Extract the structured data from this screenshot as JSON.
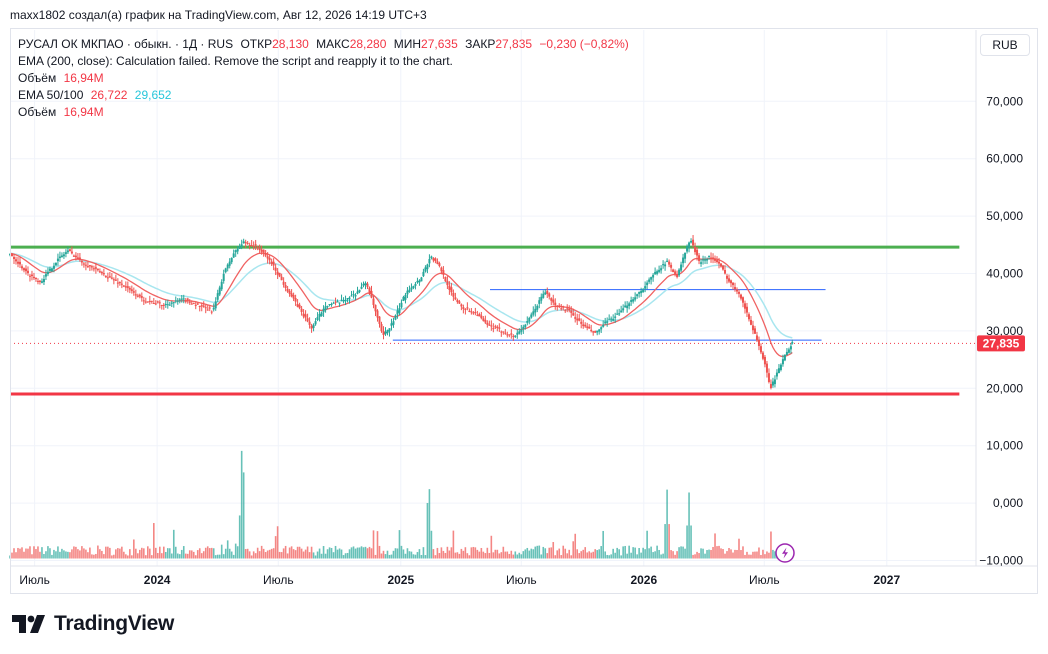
{
  "header": {
    "credit": "maxx1802 создал(а) график на TradingView.com, Авг 12, 2026 14:19 UTC+3"
  },
  "legend": {
    "symbol": "РУСАЛ ОК МКПАО · обыкн. · 1Д · RUS",
    "open_label": "ОТКР",
    "open": "28,130",
    "high_label": "МАКС",
    "high": "28,280",
    "low_label": "МИН",
    "low": "27,635",
    "close_label": "ЗАКР",
    "close": "27,835",
    "change": "−0,230 (−0,82%)",
    "ema200": "EMA (200, close): Calculation failed. Remove the script and reapply it to the chart.",
    "volume_label": "Объём",
    "volume_value": "16,94M",
    "ema50_100_label": "EMA 50/100",
    "ema50_value": "26,722",
    "ema100_value": "29,652"
  },
  "currency_button": "RUB",
  "brand": "TradingView",
  "colors": {
    "up": "#26a69a",
    "down": "#ef5350",
    "ema50": "#f06262",
    "ema100": "#a8e6ef",
    "resistance": "#4caf50",
    "support": "#f23645",
    "hline": "#2962ff",
    "price_tag": "#f23645"
  },
  "chart_data": {
    "type": "candlestick",
    "y_axis": {
      "ticks": [
        "70,000",
        "60,000",
        "50,000",
        "40,000",
        "30,000",
        "20,000",
        "10,000",
        "0,000",
        "−10,000"
      ],
      "values": [
        70,
        60,
        50,
        40,
        30,
        20,
        10,
        0,
        -10
      ]
    },
    "x_axis": {
      "ticks": [
        "Июль",
        "2024",
        "Июль",
        "2025",
        "Июль",
        "2026",
        "Июль",
        "2027"
      ],
      "dates": [
        "2023-07-01",
        "2024-01-01",
        "2024-07-01",
        "2025-01-01",
        "2025-07-01",
        "2026-01-01",
        "2026-07-01",
        "2027-01-01"
      ],
      "range": [
        "2023-05-25",
        "2027-05-15"
      ]
    },
    "last_price": 27.835,
    "last_price_label": "27,835",
    "horizontal_levels": [
      {
        "name": "resistance",
        "value": 44.6,
        "from": "2023-05-25",
        "to": "2027-04-20"
      },
      {
        "name": "support",
        "value": 19.0,
        "from": "2023-05-25",
        "to": "2027-04-20"
      },
      {
        "name": "upper-range",
        "value": 37.2,
        "from": "2025-05-15",
        "to": "2026-10-01"
      },
      {
        "name": "lower-range",
        "value": 28.4,
        "from": "2024-12-20",
        "to": "2026-09-25"
      }
    ],
    "price_path": [
      [
        "2023-05-25",
        43.5
      ],
      [
        "2023-06-20",
        40.0
      ],
      [
        "2023-07-10",
        38.5
      ],
      [
        "2023-08-05",
        42.5
      ],
      [
        "2023-08-20",
        44.0
      ],
      [
        "2023-09-10",
        42.0
      ],
      [
        "2023-10-10",
        40.0
      ],
      [
        "2023-11-10",
        38.0
      ],
      [
        "2023-12-10",
        35.5
      ],
      [
        "2024-01-10",
        34.5
      ],
      [
        "2024-02-10",
        35.5
      ],
      [
        "2024-03-10",
        34.0
      ],
      [
        "2024-03-25",
        33.5
      ],
      [
        "2024-04-10",
        40.0
      ],
      [
        "2024-04-25",
        43.5
      ],
      [
        "2024-05-10",
        45.5
      ],
      [
        "2024-06-01",
        44.5
      ],
      [
        "2024-06-20",
        42.0
      ],
      [
        "2024-07-10",
        38.0
      ],
      [
        "2024-08-01",
        34.0
      ],
      [
        "2024-08-20",
        30.5
      ],
      [
        "2024-09-10",
        34.5
      ],
      [
        "2024-10-01",
        35.0
      ],
      [
        "2024-10-25",
        36.5
      ],
      [
        "2024-11-10",
        38.5
      ],
      [
        "2024-11-25",
        33.0
      ],
      [
        "2024-12-05",
        29.0
      ],
      [
        "2024-12-20",
        31.5
      ],
      [
        "2025-01-10",
        37.0
      ],
      [
        "2025-01-30",
        39.0
      ],
      [
        "2025-02-15",
        43.0
      ],
      [
        "2025-03-01",
        41.0
      ],
      [
        "2025-03-20",
        36.0
      ],
      [
        "2025-04-05",
        34.0
      ],
      [
        "2025-04-25",
        33.0
      ],
      [
        "2025-05-10",
        31.0
      ],
      [
        "2025-06-01",
        30.0
      ],
      [
        "2025-06-20",
        29.0
      ],
      [
        "2025-07-10",
        31.5
      ],
      [
        "2025-07-25",
        34.5
      ],
      [
        "2025-08-05",
        37.0
      ],
      [
        "2025-08-20",
        34.5
      ],
      [
        "2025-09-10",
        33.5
      ],
      [
        "2025-10-01",
        31.0
      ],
      [
        "2025-10-20",
        29.5
      ],
      [
        "2025-11-05",
        31.5
      ],
      [
        "2025-11-25",
        33.0
      ],
      [
        "2025-12-10",
        35.0
      ],
      [
        "2026-01-01",
        37.5
      ],
      [
        "2026-01-20",
        40.5
      ],
      [
        "2026-02-05",
        42.0
      ],
      [
        "2026-02-20",
        39.5
      ],
      [
        "2026-03-05",
        44.0
      ],
      [
        "2026-03-12",
        46.0
      ],
      [
        "2026-03-25",
        42.0
      ],
      [
        "2026-04-10",
        43.0
      ],
      [
        "2026-04-25",
        41.5
      ],
      [
        "2026-05-10",
        38.5
      ],
      [
        "2026-05-25",
        36.5
      ],
      [
        "2026-06-05",
        33.0
      ],
      [
        "2026-06-20",
        28.5
      ],
      [
        "2026-07-01",
        24.5
      ],
      [
        "2026-07-10",
        20.0
      ],
      [
        "2026-07-20",
        22.5
      ],
      [
        "2026-08-01",
        26.0
      ],
      [
        "2026-08-12",
        27.835
      ]
    ],
    "volume_unit": "M",
    "volume_note": "volume bars plotted on the lower scale; tall spikes near 2024-05, 2025-02 and 2026-02",
    "volume_spikes": [
      [
        "2024-05-08",
        12.5
      ],
      [
        "2025-02-12",
        4.5
      ],
      [
        "2026-02-05",
        2.0
      ],
      [
        "2026-03-10",
        1.5
      ]
    ]
  }
}
